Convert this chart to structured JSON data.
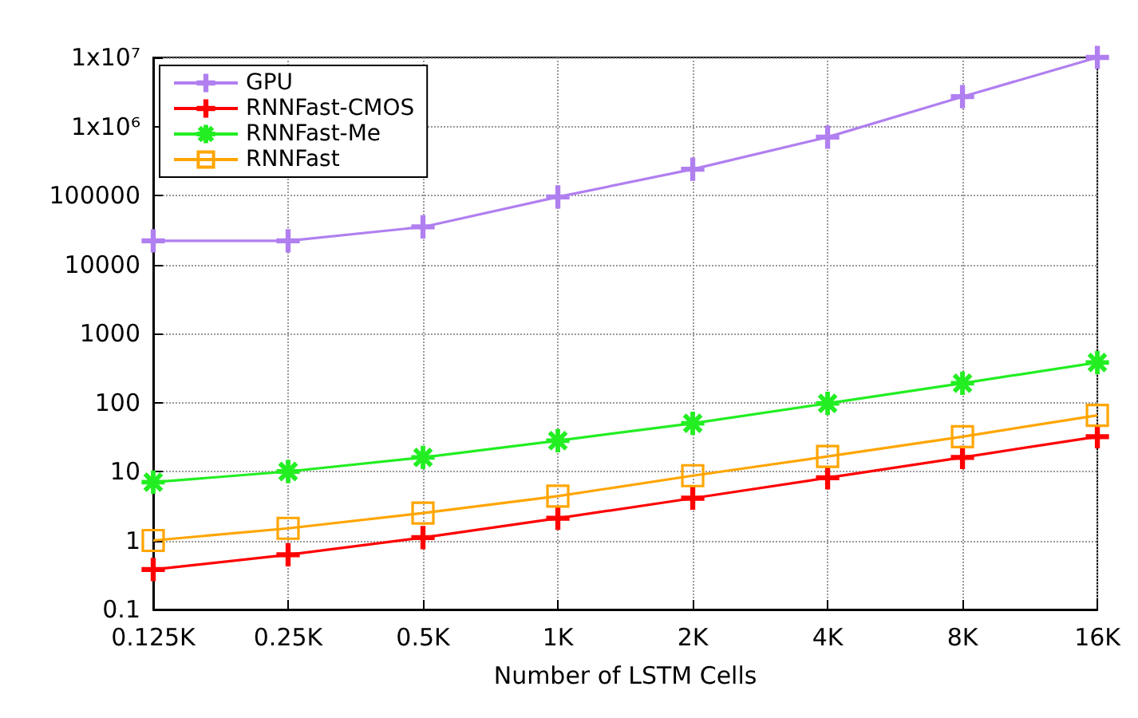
{
  "chart_data": {
    "type": "line",
    "xlabel": "Number of LSTM Cells",
    "categories": [
      "0.125K",
      "0.25K",
      "0.5K",
      "1K",
      "2K",
      "4K",
      "8K",
      "16K"
    ],
    "series": [
      {
        "name": "GPU",
        "color": "#b07ff0",
        "marker": "cross",
        "values": [
          22000,
          22000,
          35000,
          95000,
          240000,
          700000,
          2700000,
          10000000
        ]
      },
      {
        "name": "RNNFast-CMOS",
        "color": "#ff0000",
        "marker": "cross",
        "values": [
          0.38,
          0.62,
          1.1,
          2.1,
          4.1,
          8.1,
          16,
          32
        ]
      },
      {
        "name": "RNNFast-Me",
        "color": "#22ee22",
        "marker": "star",
        "values": [
          7,
          10,
          16,
          28,
          50,
          97,
          190,
          380
        ]
      },
      {
        "name": "RNNFast",
        "color": "#ffa500",
        "marker": "square",
        "values": [
          1.0,
          1.5,
          2.5,
          4.4,
          8.7,
          16.5,
          32,
          65
        ]
      }
    ],
    "log": true,
    "ylim": [
      0.1,
      10000000
    ],
    "yticks": [
      0.1,
      1,
      10,
      100,
      1000,
      10000,
      100000,
      {
        "value": 1000000,
        "label": "1x10⁶"
      },
      {
        "value": 10000000,
        "label": "1x10⁷"
      }
    ],
    "grid": true,
    "legend": "top left",
    "line_style": "solid"
  }
}
